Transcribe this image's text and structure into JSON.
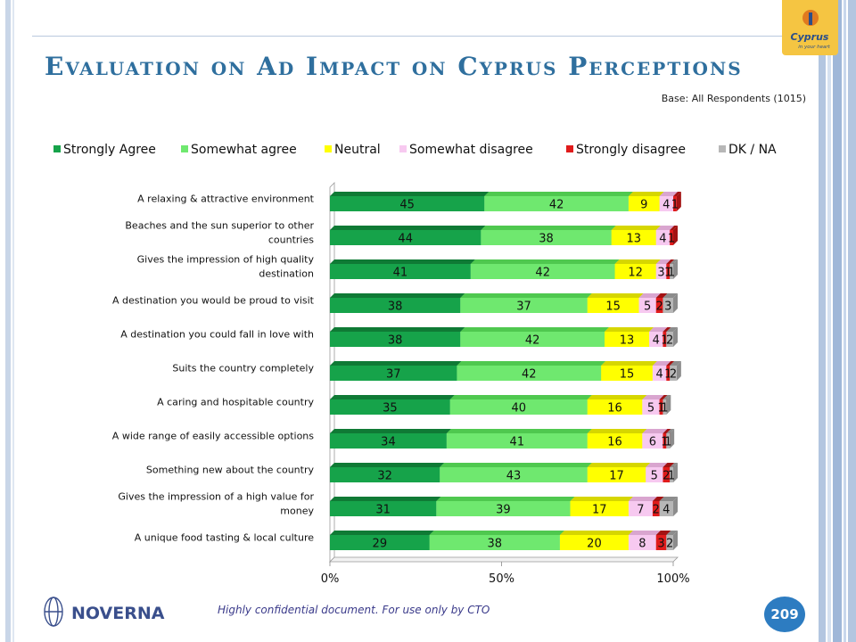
{
  "slide": {
    "title": "Evaluation on Ad Impact on Cyprus Perceptions",
    "base_note": "Base: All Respondents (1015)",
    "footer_note": "Highly confidential document. For use only by CTO",
    "page_number": "209",
    "logo_right_text": "Cyprus",
    "logo_right_subtext": "in your heart",
    "logo_left_text": "NOVERNA"
  },
  "colors": {
    "strongly_agree": "#16a34a",
    "somewhat_agree": "#6fe86f",
    "neutral": "#ffff00",
    "somewhat_disagree": "#f7c9f0",
    "strongly_disagree": "#e01b1b",
    "dk_na": "#b7b7b7",
    "title": "#2f6f9e",
    "badge": "#2d7cc1"
  },
  "chart_data": {
    "type": "bar",
    "orientation": "horizontal",
    "stacked": "100%",
    "categories": [
      "A relaxing & attractive environment",
      "Beaches and the sun superior to other countries",
      "Gives the impression of high quality destination",
      "A destination you would be proud to visit",
      "A destination you could fall in love with",
      "Suits  the country completely",
      "A caring and hospitable country",
      "A wide range of easily accessible options",
      "Something new about the country",
      "Gives the impression of a high value for money",
      "A unique food tasting & local culture"
    ],
    "series": [
      {
        "name": "Strongly Agree",
        "values": [
          45,
          44,
          41,
          38,
          38,
          37,
          35,
          34,
          32,
          31,
          29
        ]
      },
      {
        "name": "Somewhat agree",
        "values": [
          42,
          38,
          42,
          37,
          42,
          42,
          40,
          41,
          43,
          39,
          38
        ]
      },
      {
        "name": "Neutral",
        "values": [
          9,
          13,
          12,
          15,
          13,
          15,
          16,
          16,
          17,
          17,
          20
        ]
      },
      {
        "name": "Somewhat disagree",
        "values": [
          4,
          4,
          3,
          5,
          4,
          4,
          5,
          6,
          5,
          7,
          8
        ]
      },
      {
        "name": "Strongly disagree",
        "values": [
          1,
          1,
          1,
          2,
          1,
          1,
          1,
          1,
          2,
          2,
          3
        ]
      },
      {
        "name": "DK / NA",
        "values": [
          0,
          0,
          1,
          3,
          2,
          2,
          1,
          1,
          1,
          4,
          2
        ]
      }
    ],
    "xticks": [
      "0%",
      "50%",
      "100%"
    ],
    "xlim": [
      0,
      100
    ],
    "legend_position": "top"
  }
}
